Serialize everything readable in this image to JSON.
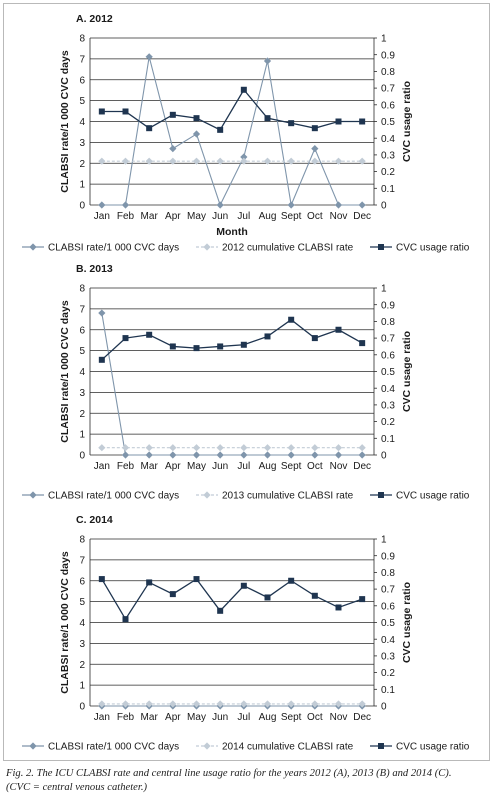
{
  "chart_data": [
    {
      "type": "line",
      "panel_title": "A. 2012",
      "categories": [
        "Jan",
        "Feb",
        "Mar",
        "Apr",
        "May",
        "Jun",
        "Jul",
        "Aug",
        "Sept",
        "Oct",
        "Nov",
        "Dec"
      ],
      "xlabel": "Month",
      "ylabel_left": "CLABSI rate/1 000 CVC days",
      "ylabel_right": "CVC usage ratio",
      "ylim_left": [
        0,
        8
      ],
      "ylim_right": [
        0,
        1
      ],
      "yticks_left": [
        "0",
        "1",
        "2",
        "3",
        "4",
        "5",
        "6",
        "7",
        "8"
      ],
      "yticks_right": [
        "0",
        "0.1",
        "0.2",
        "0.3",
        "0.4",
        "0.5",
        "0.6",
        "0.7",
        "0.8",
        "0.9",
        "1"
      ],
      "grid": true,
      "legend_position": "bottom",
      "series": [
        {
          "name": "CLABSI rate/1 000 CVC days",
          "axis": "left",
          "color": "#7f95ab",
          "marker": "diamond",
          "values": [
            0,
            0,
            7.1,
            2.7,
            3.4,
            0,
            2.3,
            6.9,
            0,
            2.7,
            0,
            0
          ]
        },
        {
          "name": "2012 cumulative CLABSI rate",
          "axis": "left",
          "color": "#c2ccd6",
          "marker": "diamond",
          "dashed": true,
          "values": [
            2.1,
            2.1,
            2.1,
            2.1,
            2.1,
            2.1,
            2.1,
            2.1,
            2.1,
            2.1,
            2.1,
            2.1
          ]
        },
        {
          "name": "CVC usage ratio",
          "axis": "right",
          "color": "#1f3550",
          "marker": "square",
          "values": [
            0.56,
            0.56,
            0.46,
            0.54,
            0.52,
            0.45,
            0.69,
            0.52,
            0.49,
            0.46,
            0.5,
            0.5
          ]
        }
      ]
    },
    {
      "type": "line",
      "panel_title": "B. 2013",
      "categories": [
        "Jan",
        "Feb",
        "Mar",
        "Apr",
        "May",
        "Jun",
        "Jul",
        "Aug",
        "Sept",
        "Oct",
        "Nov",
        "Dec"
      ],
      "xlabel": "",
      "ylabel_left": "CLABSI rate/1 000 CVC days",
      "ylabel_right": "CVC usage ratio",
      "ylim_left": [
        0,
        8
      ],
      "ylim_right": [
        0,
        1
      ],
      "yticks_left": [
        "0",
        "1",
        "2",
        "3",
        "4",
        "5",
        "6",
        "7",
        "8"
      ],
      "yticks_right": [
        "0",
        "0.1",
        "0.2",
        "0.3",
        "0.4",
        "0.5",
        "0.6",
        "0.7",
        "0.8",
        "0.9",
        "1"
      ],
      "grid": true,
      "legend_position": "bottom",
      "series": [
        {
          "name": "CLABSI rate/1 000 CVC days",
          "axis": "left",
          "color": "#7f95ab",
          "marker": "diamond",
          "values": [
            6.8,
            0,
            0,
            0,
            0,
            0,
            0,
            0,
            0,
            0,
            0,
            0
          ]
        },
        {
          "name": "2013 cumulative CLABSI rate",
          "axis": "left",
          "color": "#c2ccd6",
          "marker": "diamond",
          "dashed": true,
          "values": [
            0.35,
            0.35,
            0.35,
            0.35,
            0.35,
            0.35,
            0.35,
            0.35,
            0.35,
            0.35,
            0.35,
            0.35
          ]
        },
        {
          "name": "CVC usage ratio",
          "axis": "right",
          "color": "#1f3550",
          "marker": "square",
          "values": [
            0.57,
            0.7,
            0.72,
            0.65,
            0.64,
            0.65,
            0.66,
            0.71,
            0.81,
            0.7,
            0.75,
            0.67
          ]
        }
      ]
    },
    {
      "type": "line",
      "panel_title": "C. 2014",
      "categories": [
        "Jan",
        "Feb",
        "Mar",
        "Apr",
        "May",
        "Jun",
        "Jul",
        "Aug",
        "Sept",
        "Oct",
        "Nov",
        "Dec"
      ],
      "xlabel": "",
      "ylabel_left": "CLABSI rate/1 000 CVC days",
      "ylabel_right": "CVC usage ratio",
      "ylim_left": [
        0,
        8
      ],
      "ylim_right": [
        0,
        1
      ],
      "yticks_left": [
        "0",
        "1",
        "2",
        "3",
        "4",
        "5",
        "6",
        "7",
        "8"
      ],
      "yticks_right": [
        "0",
        "0.1",
        "0.2",
        "0.3",
        "0.4",
        "0.5",
        "0.6",
        "0.7",
        "0.8",
        "0.9",
        "1"
      ],
      "grid": true,
      "legend_position": "bottom",
      "series": [
        {
          "name": "CLABSI rate/1 000 CVC days",
          "axis": "left",
          "color": "#7f95ab",
          "marker": "diamond",
          "values": [
            0,
            0,
            0,
            0,
            0,
            0,
            0,
            0,
            0,
            0,
            0,
            0
          ]
        },
        {
          "name": "2014 cumulative CLABSI rate",
          "axis": "left",
          "color": "#c2ccd6",
          "marker": "diamond",
          "dashed": true,
          "values": [
            0.1,
            0.1,
            0.1,
            0.1,
            0.1,
            0.1,
            0.1,
            0.1,
            0.1,
            0.1,
            0.1,
            0.1
          ]
        },
        {
          "name": "CVC usage ratio",
          "axis": "right",
          "color": "#1f3550",
          "marker": "square",
          "values": [
            0.76,
            0.52,
            0.74,
            0.67,
            0.76,
            0.57,
            0.72,
            0.65,
            0.75,
            0.66,
            0.59,
            0.64
          ]
        }
      ]
    }
  ],
  "caption": {
    "line1": "Fig. 2. The ICU CLABSI rate and central line usage ratio for the years 2012 (A), 2013 (B) and 2014 (C).",
    "line2": "(CVC = central venous catheter.)"
  }
}
